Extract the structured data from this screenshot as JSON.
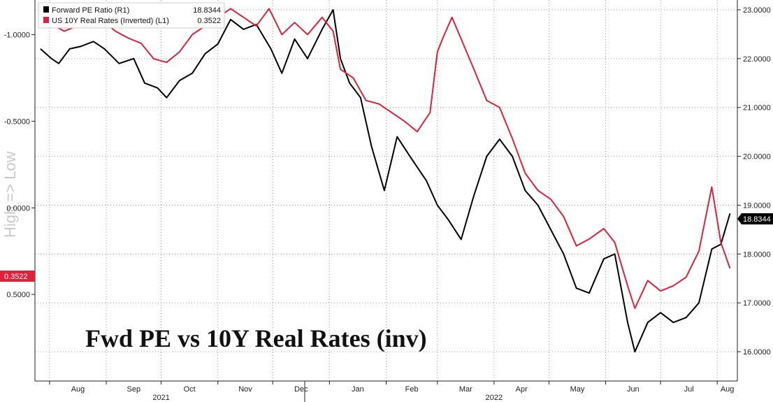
{
  "chart_data": {
    "type": "line",
    "title": "Fwd PE vs 10Y Real Rates (inv)",
    "ylabel_left": "High => Low",
    "left_axis": {
      "inverted": true,
      "range": [
        1.0,
        -1.2
      ],
      "ticks": [
        -1.0,
        -0.5,
        0.0,
        0.5
      ],
      "tick_labels": [
        "-1.0000",
        "-0.5000",
        "0.0000",
        "0.5000"
      ]
    },
    "right_axis": {
      "range": [
        15.4,
        23.2
      ],
      "ticks": [
        16,
        17,
        18,
        19,
        20,
        21,
        22,
        23
      ],
      "tick_labels": [
        "16.0000",
        "17.0000",
        "18.0000",
        "19.0000",
        "20.0000",
        "21.0000",
        "22.0000",
        "23.0000"
      ]
    },
    "x_axis": {
      "range": [
        "2021-07-24",
        "2022-08-12"
      ],
      "months": [
        {
          "label": "Aug",
          "date": "2021-08-01"
        },
        {
          "label": "Sep",
          "date": "2021-09-01"
        },
        {
          "label": "Oct",
          "date": "2021-10-01"
        },
        {
          "label": "Nov",
          "date": "2021-11-01"
        },
        {
          "label": "Dec",
          "date": "2021-12-01"
        },
        {
          "label": "Jan",
          "date": "2022-01-01"
        },
        {
          "label": "Feb",
          "date": "2022-02-01"
        },
        {
          "label": "Mar",
          "date": "2022-03-01"
        },
        {
          "label": "Apr",
          "date": "2022-04-01"
        },
        {
          "label": "May",
          "date": "2022-05-01"
        },
        {
          "label": "Jun",
          "date": "2022-06-01"
        },
        {
          "label": "Jul",
          "date": "2022-07-01"
        },
        {
          "label": "Aug",
          "date": "2022-08-01"
        }
      ],
      "years": [
        {
          "label": "2021",
          "date": "2021-10-01"
        },
        {
          "label": "2022",
          "date": "2022-04-01"
        }
      ]
    },
    "grid": true,
    "legend_position": "top-left",
    "series": [
      {
        "name": "Forward PE Ratio (R1)",
        "axis": "right",
        "color": "#000000",
        "last_value": "18.8344",
        "points": [
          [
            "2021-07-27",
            22.2
          ],
          [
            "2021-08-02",
            22.0
          ],
          [
            "2021-08-06",
            21.9
          ],
          [
            "2021-08-12",
            22.2
          ],
          [
            "2021-08-18",
            22.25
          ],
          [
            "2021-08-25",
            22.35
          ],
          [
            "2021-08-31",
            22.2
          ],
          [
            "2021-09-08",
            21.9
          ],
          [
            "2021-09-16",
            22.0
          ],
          [
            "2021-09-22",
            21.5
          ],
          [
            "2021-09-29",
            21.4
          ],
          [
            "2021-10-04",
            21.2
          ],
          [
            "2021-10-11",
            21.55
          ],
          [
            "2021-10-18",
            21.7
          ],
          [
            "2021-10-25",
            22.1
          ],
          [
            "2021-11-01",
            22.3
          ],
          [
            "2021-11-08",
            22.8
          ],
          [
            "2021-11-15",
            22.6
          ],
          [
            "2021-11-22",
            22.7
          ],
          [
            "2021-11-30",
            22.2
          ],
          [
            "2021-12-06",
            21.7
          ],
          [
            "2021-12-13",
            22.4
          ],
          [
            "2021-12-20",
            22.0
          ],
          [
            "2021-12-28",
            22.6
          ],
          [
            "2022-01-03",
            23.0
          ],
          [
            "2022-01-07",
            22.0
          ],
          [
            "2022-01-12",
            21.5
          ],
          [
            "2022-01-18",
            21.2
          ],
          [
            "2022-01-24",
            20.2
          ],
          [
            "2022-01-31",
            19.3
          ],
          [
            "2022-02-07",
            20.4
          ],
          [
            "2022-02-14",
            20.0
          ],
          [
            "2022-02-23",
            19.5
          ],
          [
            "2022-03-01",
            19.0
          ],
          [
            "2022-03-07",
            18.7
          ],
          [
            "2022-03-14",
            18.3
          ],
          [
            "2022-03-21",
            19.2
          ],
          [
            "2022-03-28",
            20.0
          ],
          [
            "2022-04-04",
            20.35
          ],
          [
            "2022-04-11",
            20.0
          ],
          [
            "2022-04-18",
            19.3
          ],
          [
            "2022-04-25",
            19.0
          ],
          [
            "2022-05-02",
            18.5
          ],
          [
            "2022-05-09",
            18.0
          ],
          [
            "2022-05-16",
            17.3
          ],
          [
            "2022-05-23",
            17.2
          ],
          [
            "2022-05-31",
            17.9
          ],
          [
            "2022-06-06",
            18.0
          ],
          [
            "2022-06-13",
            16.6
          ],
          [
            "2022-06-17",
            16.0
          ],
          [
            "2022-06-24",
            16.6
          ],
          [
            "2022-07-01",
            16.8
          ],
          [
            "2022-07-08",
            16.6
          ],
          [
            "2022-07-15",
            16.7
          ],
          [
            "2022-07-22",
            17.0
          ],
          [
            "2022-07-29",
            18.1
          ],
          [
            "2022-08-03",
            18.2
          ],
          [
            "2022-08-08",
            18.83
          ]
        ]
      },
      {
        "name": "US 10Y Real Rates (Inverted) (L1)",
        "axis": "left",
        "color": "#e0213b",
        "last_value": "0.3522",
        "points": [
          [
            "2021-07-27",
            -1.1
          ],
          [
            "2021-08-02",
            -1.06
          ],
          [
            "2021-08-09",
            -1.02
          ],
          [
            "2021-08-16",
            -1.05
          ],
          [
            "2021-08-23",
            -1.04
          ],
          [
            "2021-08-30",
            -1.08
          ],
          [
            "2021-09-06",
            -1.02
          ],
          [
            "2021-09-13",
            -0.98
          ],
          [
            "2021-09-20",
            -0.95
          ],
          [
            "2021-09-27",
            -0.86
          ],
          [
            "2021-10-04",
            -0.84
          ],
          [
            "2021-10-11",
            -0.9
          ],
          [
            "2021-10-18",
            -1.0
          ],
          [
            "2021-10-25",
            -1.05
          ],
          [
            "2021-11-01",
            -1.1
          ],
          [
            "2021-11-08",
            -1.15
          ],
          [
            "2021-11-15",
            -1.1
          ],
          [
            "2021-11-22",
            -1.05
          ],
          [
            "2021-11-29",
            -1.15
          ],
          [
            "2021-12-06",
            -1.0
          ],
          [
            "2021-12-13",
            -1.07
          ],
          [
            "2021-12-20",
            -1.0
          ],
          [
            "2021-12-28",
            -1.1
          ],
          [
            "2022-01-03",
            -1.02
          ],
          [
            "2022-01-07",
            -0.8
          ],
          [
            "2022-01-14",
            -0.75
          ],
          [
            "2022-01-21",
            -0.62
          ],
          [
            "2022-01-28",
            -0.6
          ],
          [
            "2022-02-04",
            -0.55
          ],
          [
            "2022-02-11",
            -0.5
          ],
          [
            "2022-02-18",
            -0.44
          ],
          [
            "2022-02-25",
            -0.55
          ],
          [
            "2022-03-01",
            -0.9
          ],
          [
            "2022-03-04",
            -0.98
          ],
          [
            "2022-03-09",
            -1.1
          ],
          [
            "2022-03-15",
            -0.95
          ],
          [
            "2022-03-21",
            -0.8
          ],
          [
            "2022-03-28",
            -0.62
          ],
          [
            "2022-04-04",
            -0.58
          ],
          [
            "2022-04-11",
            -0.4
          ],
          [
            "2022-04-18",
            -0.2
          ],
          [
            "2022-04-25",
            -0.1
          ],
          [
            "2022-05-02",
            -0.05
          ],
          [
            "2022-05-09",
            0.05
          ],
          [
            "2022-05-16",
            0.22
          ],
          [
            "2022-05-23",
            0.18
          ],
          [
            "2022-05-31",
            0.12
          ],
          [
            "2022-06-06",
            0.2
          ],
          [
            "2022-06-13",
            0.45
          ],
          [
            "2022-06-17",
            0.58
          ],
          [
            "2022-06-24",
            0.42
          ],
          [
            "2022-07-01",
            0.48
          ],
          [
            "2022-07-08",
            0.45
          ],
          [
            "2022-07-15",
            0.4
          ],
          [
            "2022-07-22",
            0.25
          ],
          [
            "2022-07-29",
            -0.12
          ],
          [
            "2022-08-03",
            0.2
          ],
          [
            "2022-08-08",
            0.35
          ]
        ]
      }
    ]
  },
  "tags": {
    "right_value": "18.8344",
    "left_value": "0.3522",
    "right_color": "#000000",
    "left_color": "#e0213b"
  }
}
